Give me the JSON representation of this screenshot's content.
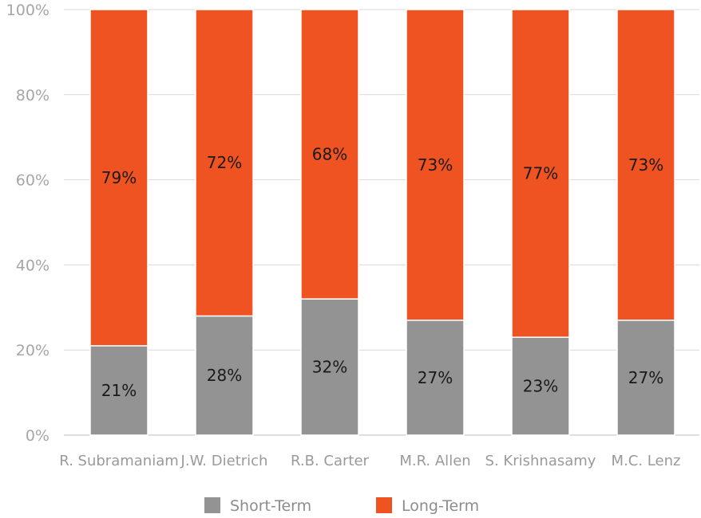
{
  "chart_data": {
    "type": "bar",
    "stacked": true,
    "categories": [
      "R. Subramaniam",
      "J.W. Dietrich",
      "R.B. Carter",
      "M.R. Allen",
      "S. Krishnasamy",
      "M.C. Lenz"
    ],
    "series": [
      {
        "name": "Short-Term",
        "color": "#939393",
        "values": [
          21,
          28,
          32,
          27,
          23,
          27
        ]
      },
      {
        "name": "Long-Term",
        "color": "#ef5322",
        "values": [
          79,
          72,
          68,
          73,
          77,
          73
        ]
      }
    ],
    "value_suffix": "%",
    "ylim": [
      0,
      100
    ],
    "yticks": [
      0,
      20,
      40,
      60,
      80,
      100
    ],
    "ytick_labels": [
      "0%",
      "20%",
      "40%",
      "60%",
      "80%",
      "100%"
    ],
    "grid": true,
    "legend_position": "bottom"
  }
}
